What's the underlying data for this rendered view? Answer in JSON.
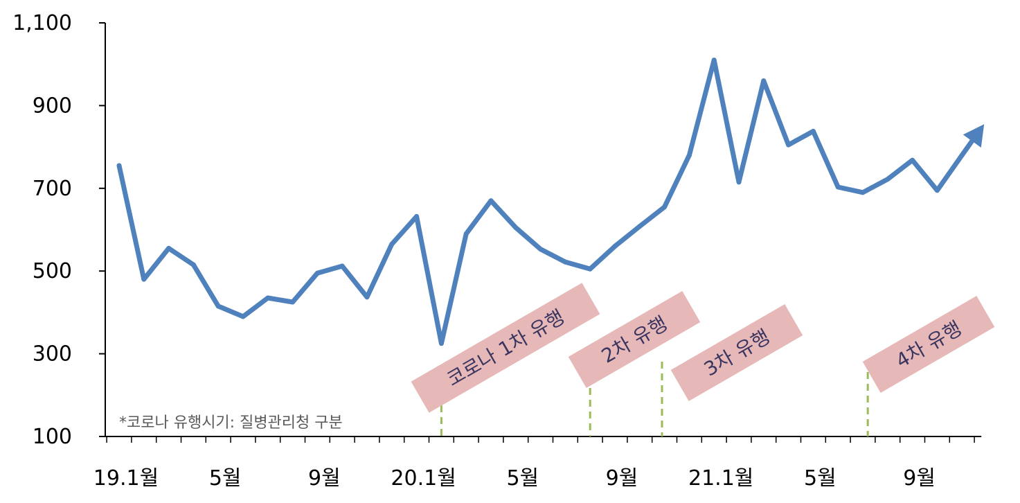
{
  "chart_data": {
    "type": "line",
    "title": "",
    "xlabel": "",
    "ylabel": "",
    "ylim": [
      100,
      1100
    ],
    "yticks": [
      100,
      300,
      500,
      700,
      900,
      1100
    ],
    "ytick_labels": [
      "100",
      "300",
      "500",
      "700",
      "900",
      "1,100"
    ],
    "x_tick_labels": [
      {
        "index": 0,
        "label": "19.1월"
      },
      {
        "index": 4,
        "label": "5월"
      },
      {
        "index": 8,
        "label": "9월"
      },
      {
        "index": 12,
        "label": "20.1월"
      },
      {
        "index": 16,
        "label": "5월"
      },
      {
        "index": 20,
        "label": "9월"
      },
      {
        "index": 24,
        "label": "21.1월"
      },
      {
        "index": 28,
        "label": "5월"
      },
      {
        "index": 32,
        "label": "9월"
      }
    ],
    "x": [
      "2019-01",
      "2019-02",
      "2019-03",
      "2019-04",
      "2019-05",
      "2019-06",
      "2019-07",
      "2019-08",
      "2019-09",
      "2019-10",
      "2019-11",
      "2019-12",
      "2020-01",
      "2020-02",
      "2020-03",
      "2020-04",
      "2020-05",
      "2020-06",
      "2020-07",
      "2020-08",
      "2020-09",
      "2020-10",
      "2020-11",
      "2020-12",
      "2021-01",
      "2021-02",
      "2021-03",
      "2021-04",
      "2021-05",
      "2021-06",
      "2021-07",
      "2021-08",
      "2021-09",
      "2021-10",
      "2021-11"
    ],
    "series": [
      {
        "color": "#4f81bd",
        "values": [
          755,
          480,
          555,
          515,
          415,
          390,
          435,
          425,
          495,
          512,
          437,
          565,
          632,
          325,
          590,
          670,
          605,
          553,
          522,
          505,
          560,
          608,
          655,
          780,
          1010,
          715,
          960,
          805,
          838,
          703,
          690,
          722,
          768,
          695,
          780
        ]
      }
    ],
    "trend_arrow": {
      "from": 780,
      "to": 855
    },
    "grid": false,
    "legend": "none",
    "annotations": [
      {
        "text": "코로나 1차 유행",
        "at_index": 13.0
      },
      {
        "text": "2차 유행",
        "at_index": 19.0
      },
      {
        "text": "3차 유행",
        "at_index": 21.9
      },
      {
        "text": "4차 유행",
        "at_index": 30.2
      }
    ],
    "annotation_line_color": "#9bbb59",
    "annotation_box_color": "#e6b9b8",
    "note": "*코로나 유행시기: 질병관리청 구분"
  }
}
